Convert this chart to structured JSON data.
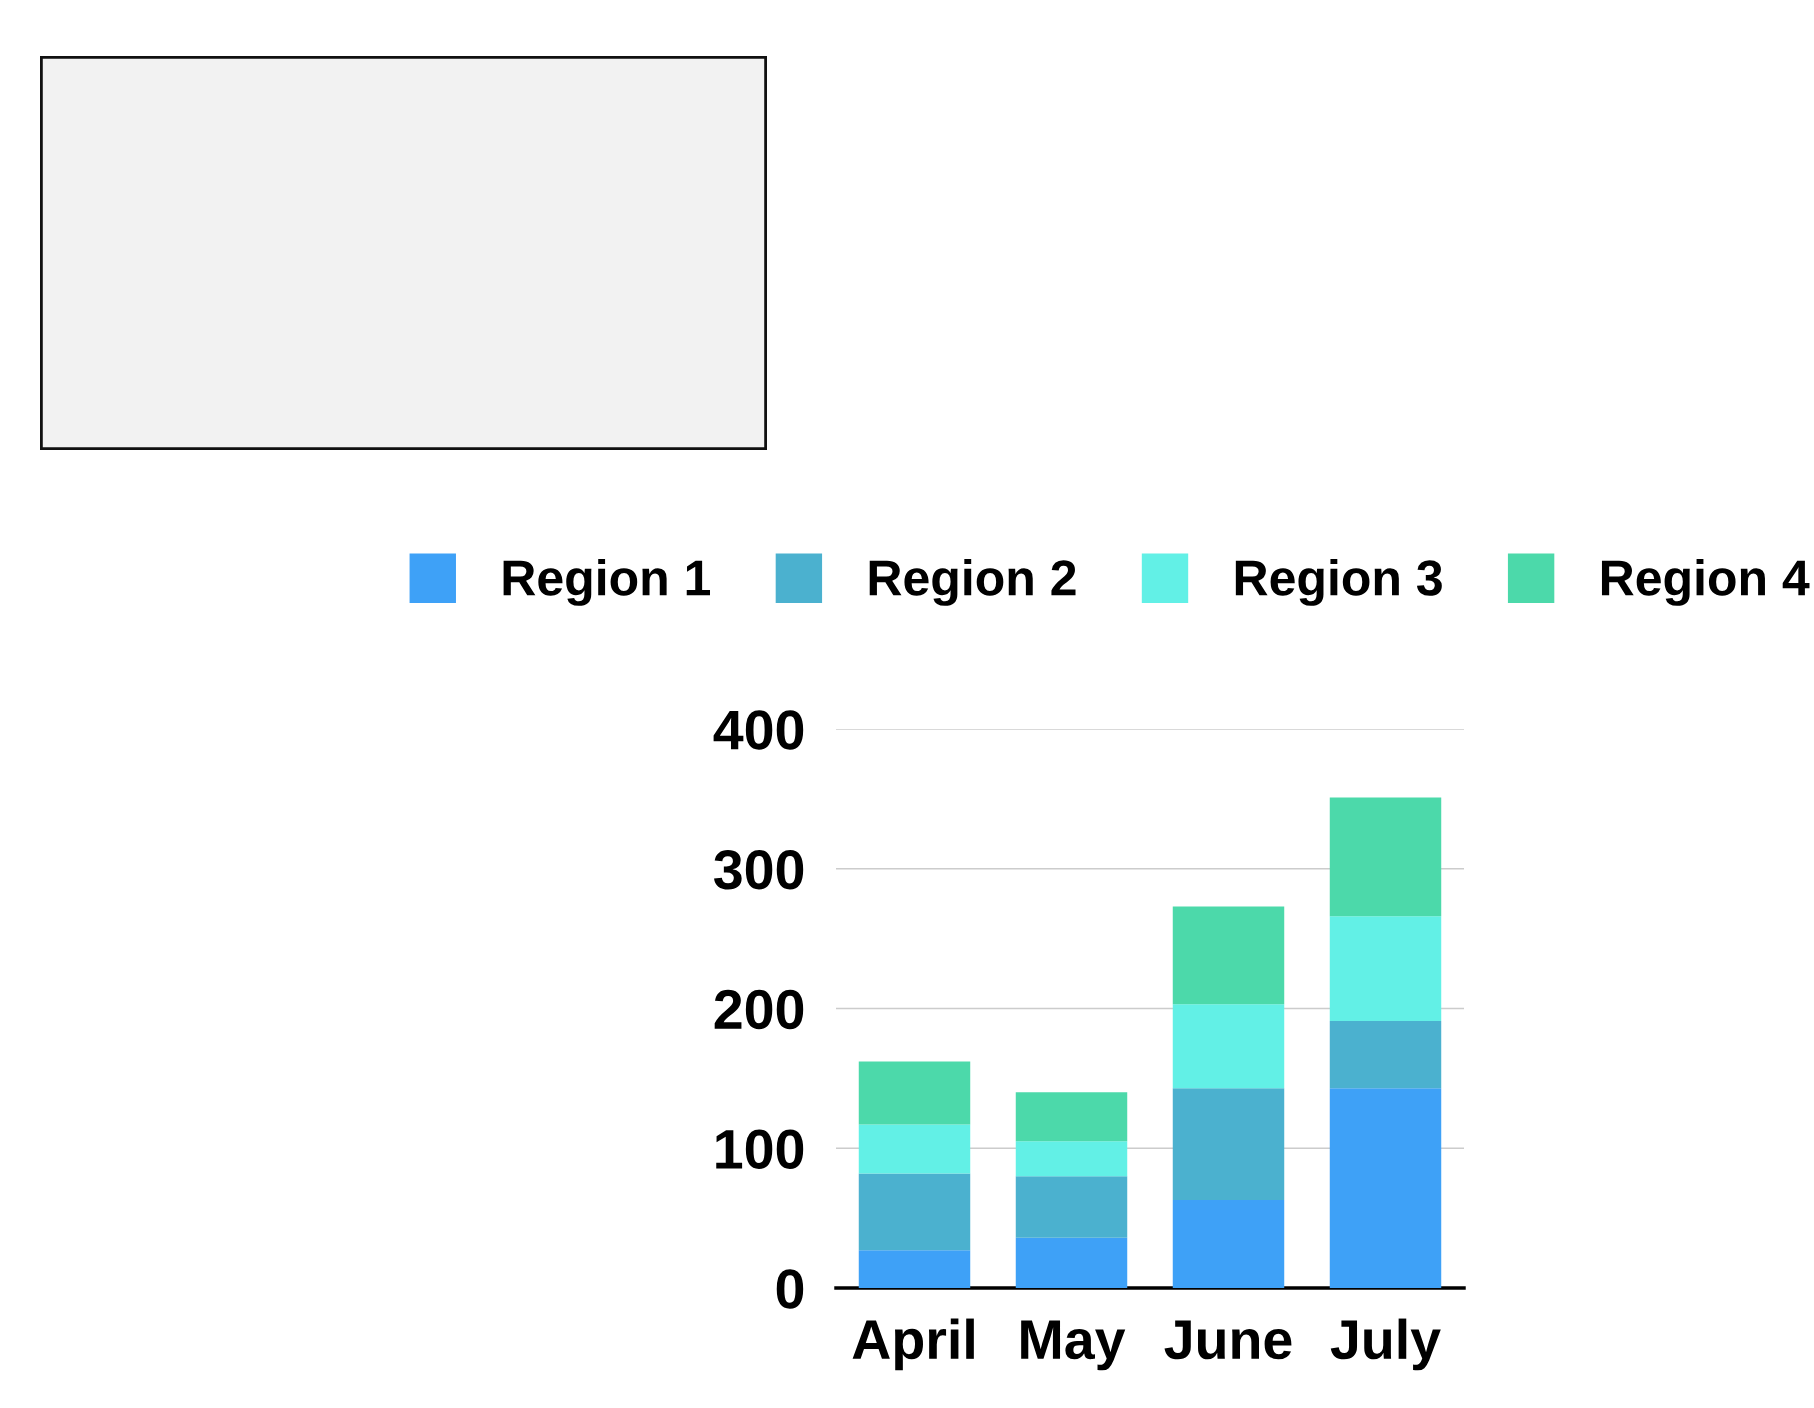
{
  "chart_data": {
    "type": "bar",
    "stacked": true,
    "categories": [
      "April",
      "May",
      "June",
      "July"
    ],
    "series": [
      {
        "name": "Region 1",
        "color": "#3ea1f7",
        "values": [
          27,
          36,
          63,
          143
        ]
      },
      {
        "name": "Region 2",
        "color": "#4bb1cf",
        "values": [
          55,
          44,
          80,
          48
        ]
      },
      {
        "name": "Region 3",
        "color": "#62f0e6",
        "values": [
          35,
          25,
          60,
          75
        ]
      },
      {
        "name": "Region 4",
        "color": "#4cd9aa",
        "values": [
          45,
          35,
          70,
          85
        ]
      }
    ],
    "ylim": [
      0,
      400
    ],
    "yticks": [
      0,
      100,
      200,
      300,
      400
    ],
    "grid": "y",
    "legend": "top"
  }
}
